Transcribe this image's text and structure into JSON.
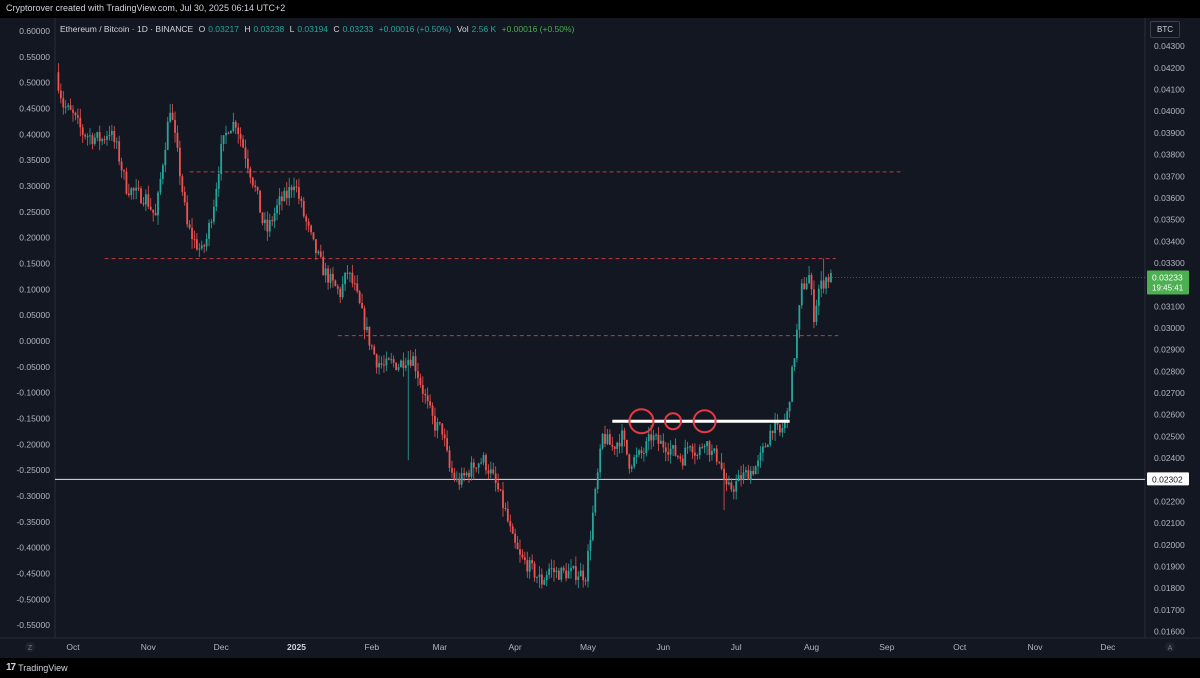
{
  "header": {
    "credit": "Cryptorover created with TradingView.com, Jul 30, 2025 06:14 UTC+2"
  },
  "legend": {
    "symbol": "Ethereum / Bitcoin · 1D · BINANCE",
    "open_label": "O",
    "open_value": "0.03217",
    "high_label": "H",
    "high_value": "0.03238",
    "low_label": "L",
    "low_value": "0.03194",
    "close_label": "C",
    "close_value": "0.03233",
    "change": "+0.00016 (+0.50%)",
    "vol_label": "Vol",
    "vol_value": "2.56 K",
    "vol_change": "+0.00016 (+0.50%)"
  },
  "currency_badge": "BTC",
  "footer": {
    "brand": "TradingView",
    "left_button": "Z",
    "right_button": "A"
  },
  "colors": {
    "up": "#26a69a",
    "down": "#ef5350",
    "background": "#131722",
    "price_tag": "#4caf50"
  },
  "chart_data": {
    "type": "candlestick",
    "left_axis": {
      "ticks": [
        "0.60000",
        "0.55000",
        "0.50000",
        "0.45000",
        "0.40000",
        "0.35000",
        "0.30000",
        "0.25000",
        "0.20000",
        "0.15000",
        "0.10000",
        "0.05000",
        "0.00000",
        "-0.05000",
        "-0.10000",
        "-0.15000",
        "-0.20000",
        "-0.25000",
        "-0.30000",
        "-0.35000",
        "-0.40000",
        "-0.45000",
        "-0.50000",
        "-0.55000"
      ],
      "range": [
        -0.575,
        0.625
      ]
    },
    "right_axis": {
      "ticks": [
        "0.04300",
        "0.04200",
        "0.04100",
        "0.04000",
        "0.03900",
        "0.03800",
        "0.03700",
        "0.03600",
        "0.03500",
        "0.03400",
        "0.03300",
        "0.03200",
        "0.03100",
        "0.03000",
        "0.02900",
        "0.02800",
        "0.02700",
        "0.02600",
        "0.02500",
        "0.02400",
        "0.02300",
        "0.02200",
        "0.02100",
        "0.02000",
        "0.01900",
        "0.01800",
        "0.01700",
        "0.01600"
      ],
      "range": [
        0.0157,
        0.0443
      ]
    },
    "x_axis": {
      "labels": [
        "Oct",
        "Nov",
        "Dec",
        "2025",
        "Feb",
        "Mar",
        "Apr",
        "May",
        "Jun",
        "Jul",
        "Aug",
        "Sep",
        "Oct",
        "Nov",
        "Dec"
      ],
      "label_days": [
        0,
        31,
        61,
        92,
        123,
        151,
        182,
        212,
        243,
        273,
        304,
        335,
        365,
        396,
        426
      ]
    },
    "last_price": {
      "value": 0.03233,
      "label": "0.03233",
      "countdown": "19:45:41"
    },
    "horizontal_line": {
      "value": 0.02302,
      "label": "0.02302"
    },
    "resistance_levels": [
      {
        "value": 0.0372,
        "start_day": 48,
        "end_day": 342
      },
      {
        "value": 0.0332,
        "start_day": 13,
        "end_day": 314
      },
      {
        "value": 0.02965,
        "start_day": 109,
        "end_day": 315
      }
    ],
    "neckline": {
      "value": 0.0257,
      "start_day": 222,
      "end_day": 295
    },
    "circled_highs": [
      {
        "day": 234,
        "value": 0.0257
      },
      {
        "day": 247,
        "value": 0.0257
      },
      {
        "day": 260,
        "value": 0.0257
      }
    ],
    "price_path": [
      [
        -7,
        0.0418
      ],
      [
        -4,
        0.0403
      ],
      [
        0,
        0.0398
      ],
      [
        4,
        0.039
      ],
      [
        8,
        0.0388
      ],
      [
        12,
        0.0387
      ],
      [
        15,
        0.0391
      ],
      [
        18,
        0.0383
      ],
      [
        22,
        0.0365
      ],
      [
        26,
        0.0362
      ],
      [
        30,
        0.036
      ],
      [
        34,
        0.0351
      ],
      [
        37,
        0.0377
      ],
      [
        40,
        0.0402
      ],
      [
        43,
        0.038
      ],
      [
        47,
        0.0347
      ],
      [
        50,
        0.034
      ],
      [
        53,
        0.0335
      ],
      [
        55,
        0.0341
      ],
      [
        58,
        0.0358
      ],
      [
        61,
        0.0382
      ],
      [
        64,
        0.0393
      ],
      [
        67,
        0.0395
      ],
      [
        70,
        0.0384
      ],
      [
        73,
        0.0372
      ],
      [
        76,
        0.036
      ],
      [
        78,
        0.0349
      ],
      [
        80,
        0.0345
      ],
      [
        83,
        0.0353
      ],
      [
        85,
        0.0358
      ],
      [
        88,
        0.0361
      ],
      [
        91,
        0.0368
      ],
      [
        95,
        0.0352
      ],
      [
        99,
        0.0338
      ],
      [
        103,
        0.0327
      ],
      [
        107,
        0.032
      ],
      [
        110,
        0.0316
      ],
      [
        113,
        0.0326
      ],
      [
        116,
        0.0318
      ],
      [
        119,
        0.0306
      ],
      [
        122,
        0.0294
      ],
      [
        125,
        0.0285
      ],
      [
        128,
        0.0282
      ],
      [
        131,
        0.0284
      ],
      [
        134,
        0.0283
      ],
      [
        137,
        0.0286
      ],
      [
        140,
        0.0286
      ],
      [
        143,
        0.0275
      ],
      [
        146,
        0.0264
      ],
      [
        149,
        0.0255
      ],
      [
        152,
        0.0253
      ],
      [
        155,
        0.0235
      ],
      [
        158,
        0.0229
      ],
      [
        160,
        0.023
      ],
      [
        163,
        0.0234
      ],
      [
        166,
        0.0238
      ],
      [
        169,
        0.0239
      ],
      [
        172,
        0.0233
      ],
      [
        175,
        0.0225
      ],
      [
        178,
        0.0215
      ],
      [
        181,
        0.0202
      ],
      [
        184,
        0.0194
      ],
      [
        187,
        0.0191
      ],
      [
        190,
        0.0187
      ],
      [
        193,
        0.0183
      ],
      [
        196,
        0.0189
      ],
      [
        199,
        0.0187
      ],
      [
        202,
        0.0187
      ],
      [
        205,
        0.0187
      ],
      [
        208,
        0.0187
      ],
      [
        211,
        0.0186
      ],
      [
        214,
        0.0214
      ],
      [
        218,
        0.025
      ],
      [
        222,
        0.0245
      ],
      [
        226,
        0.025
      ],
      [
        229,
        0.0238
      ],
      [
        232,
        0.024
      ],
      [
        235,
        0.0243
      ],
      [
        238,
        0.025
      ],
      [
        241,
        0.0247
      ],
      [
        244,
        0.0246
      ],
      [
        248,
        0.0242
      ],
      [
        251,
        0.024
      ],
      [
        254,
        0.0248
      ],
      [
        257,
        0.0241
      ],
      [
        260,
        0.0249
      ],
      [
        263,
        0.0242
      ],
      [
        266,
        0.024
      ],
      [
        269,
        0.0225
      ],
      [
        272,
        0.0227
      ],
      [
        275,
        0.0231
      ],
      [
        279,
        0.0234
      ],
      [
        282,
        0.0237
      ],
      [
        285,
        0.0246
      ],
      [
        288,
        0.0255
      ],
      [
        291,
        0.0251
      ],
      [
        294,
        0.026
      ],
      [
        297,
        0.0288
      ],
      [
        300,
        0.0318
      ],
      [
        303,
        0.0324
      ],
      [
        305,
        0.0306
      ],
      [
        307,
        0.0318
      ],
      [
        310,
        0.0323
      ],
      [
        312,
        0.0323
      ]
    ]
  }
}
